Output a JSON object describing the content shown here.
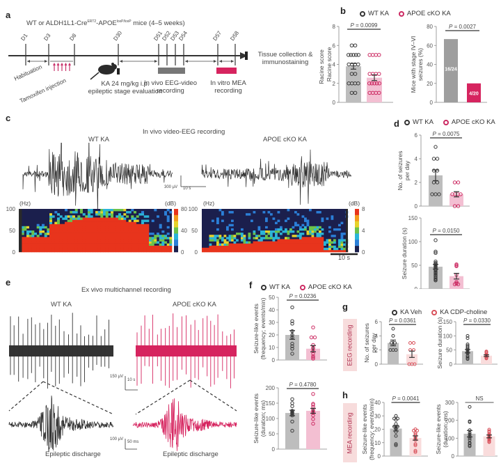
{
  "colors": {
    "wt": "#3a3a3a",
    "wt_bar": "#bdbdbd",
    "cko": "#cc2a62",
    "cko_bar": "#f3bfd2",
    "veh": "#3a3a3a",
    "cdp": "#d8505a",
    "cdp_bar": "#f9dcdc",
    "mea_bar": "#d6245f",
    "eeg_bar": "#777777"
  },
  "panel_labels": {
    "a": "a",
    "b": "b",
    "c": "c",
    "d": "d",
    "e": "e",
    "f": "f",
    "g": "g",
    "h": "h"
  },
  "timeline": {
    "title": "WT or ALDH1L1-Cre",
    "title_sup1": "ERT2",
    "title_mid": "-APOE",
    "title_sup2": "loxP/loxP",
    "title_end": " mice (4–5 weeks)",
    "days": [
      "D1",
      "D3",
      "D8",
      "D30",
      "D51",
      "D52",
      "D53",
      "D54",
      "D57",
      "D58"
    ],
    "habituation": "Habituation",
    "tamoxifen": "Tamoxifen injection",
    "ka_line1": "KA 24 mg/kg i.p.",
    "ka_line2": "epileptic stage evaluation",
    "eeg_line1": "In vivo EEG-video",
    "eeg_line2": "recording",
    "mea_line1": "In vitro MEA",
    "mea_line2": "recording",
    "end_line1": "Tissue collection &",
    "end_line2": "immunostaining"
  },
  "legend": {
    "wt": "WT KA",
    "cko": "APOE cKO KA",
    "veh": "KA Veh",
    "cdp": "KA CDP-choline"
  },
  "panel_c": {
    "title": "In vivo video-EEG recording",
    "left_title": "WT KA",
    "right_title": "APOE cKO KA",
    "scale_uv": "300 µV",
    "scale_s": "10 s",
    "hz_label": "(Hz)",
    "db_label": "(dB)",
    "freq_ticks": [
      "100",
      "50",
      "0"
    ],
    "db_ticks": [
      "80",
      "40",
      "0"
    ],
    "time_scale": "10 s"
  },
  "panel_e": {
    "title": "Ex vivo multichannel recording",
    "left_title": "WT KA",
    "right_title": "APOE cKO KA",
    "scale1_uv": "150 µV",
    "scale1_s": "10 s",
    "scale2_uv": "100 µV",
    "scale2_ms": "50 ms",
    "discharge_left": "Epileptic discharge",
    "discharge_right": "Epileptic discharge"
  },
  "side_labels": {
    "g": "EEG recording",
    "h": "MEA recording"
  },
  "chart_data": [
    {
      "id": "b-racine",
      "type": "bar",
      "title": "",
      "ylabel": "Racine score",
      "ylim": [
        0,
        8
      ],
      "yticks": [
        0,
        2,
        4,
        6,
        8
      ],
      "p_value": "P = 0.0099",
      "categories": [
        "WT KA",
        "APOE cKO KA"
      ],
      "series": [
        {
          "name": "WT KA",
          "mean": 3.8,
          "sem": 0.3,
          "points": [
            6,
            6,
            5,
            5,
            5,
            5,
            5,
            4,
            4,
            4,
            4,
            3,
            3,
            2,
            2,
            2,
            2,
            1,
            1
          ]
        },
        {
          "name": "APOE cKO KA",
          "mean": 2.6,
          "sem": 0.3,
          "points": [
            5,
            5,
            5,
            5,
            3,
            3,
            3,
            3,
            2,
            2,
            2,
            2,
            2,
            1,
            1,
            1,
            1
          ]
        }
      ]
    },
    {
      "id": "b-stage",
      "type": "bar",
      "ylabel": "Mice with stage IV–VI seizures (%)",
      "ylim": [
        0,
        80
      ],
      "yticks": [
        0,
        20,
        40,
        60,
        80
      ],
      "p_value": "P = 0.0027",
      "categories": [
        "WT KA",
        "APOE cKO KA"
      ],
      "values": [
        66.7,
        20
      ],
      "bar_labels": [
        "16/24",
        "4/20"
      ]
    },
    {
      "id": "d-seizures",
      "type": "bar",
      "ylabel": "No. of seizures per day",
      "ylim": [
        0,
        6
      ],
      "yticks": [
        0,
        2,
        4,
        6
      ],
      "p_value": "P = 0.0075",
      "categories": [
        "WT KA",
        "APOE cKO KA"
      ],
      "series": [
        {
          "name": "WT KA",
          "mean": 2.6,
          "sem": 0.45,
          "points": [
            5,
            4,
            4,
            3,
            3,
            2,
            2,
            1,
            1,
            1
          ]
        },
        {
          "name": "APOE cKO KA",
          "mean": 1.0,
          "sem": 0.22,
          "points": [
            2,
            2,
            1,
            1,
            1,
            1,
            0,
            0
          ]
        }
      ]
    },
    {
      "id": "d-duration",
      "type": "bar",
      "ylabel": "Seizure duration (s)",
      "ylim": [
        0,
        150
      ],
      "yticks": [
        0,
        50,
        100,
        150
      ],
      "p_value": "P = 0.0150",
      "categories": [
        "WT KA",
        "APOE cKO KA"
      ],
      "series": [
        {
          "name": "WT KA",
          "mean": 47,
          "sem": 5,
          "points": [
            103,
            76,
            79,
            58,
            55,
            53,
            52,
            50,
            48,
            46,
            45,
            42,
            40,
            38,
            35,
            33,
            30,
            28,
            25,
            22,
            20,
            18
          ]
        },
        {
          "name": "APOE cKO KA",
          "mean": 27,
          "sem": 6,
          "points": [
            52,
            48,
            50,
            30,
            15,
            12,
            10,
            10,
            11
          ]
        }
      ]
    },
    {
      "id": "f-frequency",
      "type": "bar",
      "ylabel": "Seizure-like events (frequency; events/min)",
      "ylim": [
        0,
        50
      ],
      "yticks": [
        0,
        10,
        20,
        30,
        40,
        50
      ],
      "p_value": "P = 0.0236",
      "categories": [
        "WT KA",
        "APOE cKO KA"
      ],
      "series": [
        {
          "name": "WT KA",
          "mean": 20,
          "sem": 3.5,
          "points": [
            42,
            31,
            29,
            23,
            20,
            18,
            13,
            11,
            9,
            5
          ]
        },
        {
          "name": "APOE cKO KA",
          "mean": 9,
          "sem": 2.5,
          "points": [
            26,
            18,
            18,
            12,
            10,
            9,
            7,
            5,
            3,
            2,
            1
          ]
        }
      ]
    },
    {
      "id": "f-duration",
      "type": "bar",
      "ylabel": "Seizure-like events (duration; ms)",
      "ylim": [
        0,
        200
      ],
      "yticks": [
        0,
        50,
        100,
        150,
        200
      ],
      "p_value": "P = 0.4780",
      "categories": [
        "WT KA",
        "APOE cKO KA"
      ],
      "series": [
        {
          "name": "WT KA",
          "mean": 118,
          "sem": 9,
          "points": [
            163,
            150,
            140,
            125,
            123,
            120,
            118,
            115,
            110,
            90,
            60
          ]
        },
        {
          "name": "APOE cKO KA",
          "mean": 125,
          "sem": 8,
          "points": [
            180,
            148,
            145,
            138,
            130,
            125,
            120,
            118,
            110,
            98,
            83
          ]
        }
      ]
    },
    {
      "id": "g-seizures",
      "type": "bar",
      "ylabel": "No. of seizures per day",
      "ylim": [
        0,
        6
      ],
      "yticks": [
        0,
        2,
        4,
        6
      ],
      "p_value": "P = 0.0361",
      "categories": [
        "KA Veh",
        "KA CDP-choline"
      ],
      "series": [
        {
          "name": "KA Veh",
          "mean": 3.0,
          "sem": 0.4,
          "points": [
            5,
            4,
            3,
            3,
            2,
            2,
            2
          ]
        },
        {
          "name": "KA CDP-choline",
          "mean": 1.4,
          "sem": 0.45,
          "points": [
            3,
            3,
            2,
            2,
            0,
            0,
            0
          ]
        }
      ]
    },
    {
      "id": "g-duration",
      "type": "bar",
      "ylabel": "Seizure duration (s)",
      "ylim": [
        0,
        150
      ],
      "yticks": [
        0,
        50,
        100,
        150
      ],
      "p_value": "P = 0.0330",
      "categories": [
        "KA Veh",
        "KA CDP-choline"
      ],
      "series": [
        {
          "name": "KA Veh",
          "mean": 46,
          "sem": 6,
          "points": [
            100,
            92,
            70,
            65,
            60,
            55,
            50,
            45,
            42,
            38,
            30,
            25,
            20,
            18
          ]
        },
        {
          "name": "KA CDP-choline",
          "mean": 30,
          "sem": 3,
          "points": [
            45,
            42,
            40,
            35,
            32,
            30,
            28,
            25,
            22,
            20
          ]
        }
      ]
    },
    {
      "id": "h-frequency",
      "type": "bar",
      "ylabel": "Seizure-like events (frequency; events/min)",
      "ylim": [
        0,
        40
      ],
      "yticks": [
        0,
        10,
        20,
        30,
        40
      ],
      "p_value": "P = 0.0041",
      "categories": [
        "KA Veh",
        "KA CDP-choline"
      ],
      "series": [
        {
          "name": "KA Veh",
          "mean": 20.5,
          "sem": 1.8,
          "points": [
            30,
            28,
            28,
            27,
            24,
            22,
            22,
            21,
            20,
            18,
            15,
            9,
            8
          ]
        },
        {
          "name": "KA CDP-choline",
          "mean": 13.5,
          "sem": 1.6,
          "points": [
            20,
            19,
            19,
            17,
            16,
            15,
            14,
            13,
            12,
            9,
            8,
            4,
            3
          ]
        }
      ]
    },
    {
      "id": "h-duration",
      "type": "bar",
      "ylabel": "Seizure-like events (duration; ms)",
      "ylim": [
        0,
        300
      ],
      "yticks": [
        0,
        100,
        200,
        300
      ],
      "p_value": "NS",
      "categories": [
        "KA Veh",
        "KA CDP-choline"
      ],
      "series": [
        {
          "name": "KA Veh",
          "mean": 125,
          "sem": 18,
          "points": [
            275,
            195,
            190,
            145,
            130,
            120,
            110,
            100,
            90,
            75,
            70,
            60,
            55
          ]
        },
        {
          "name": "KA CDP-choline",
          "mean": 110,
          "sem": 8,
          "points": [
            148,
            140,
            135,
            125,
            120,
            115,
            110,
            105,
            100,
            95,
            88,
            82,
            78
          ]
        }
      ]
    }
  ]
}
